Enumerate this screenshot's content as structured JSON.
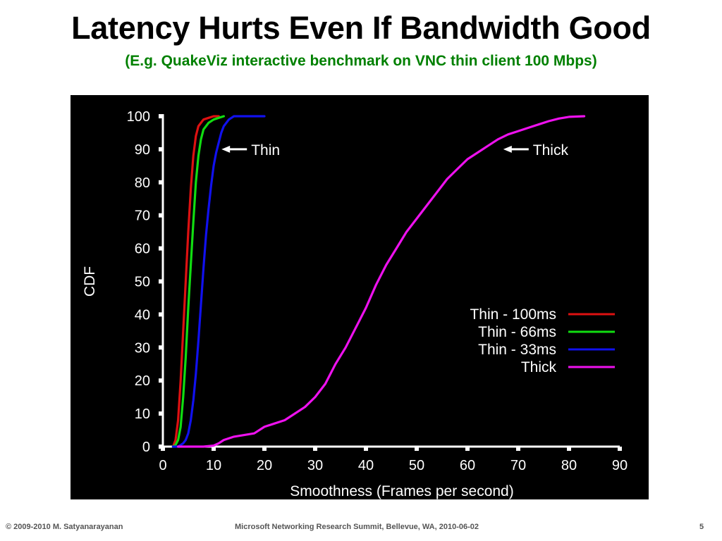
{
  "slide": {
    "title": "Latency Hurts Even If Bandwidth Good",
    "subtitle": "(E.g. QuakeViz interactive benchmark on VNC thin client 100 Mbps)",
    "subtitle_color": "#008000"
  },
  "footer": {
    "left": "© 2009-2010  M. Satyanarayanan",
    "center": "Microsoft Networking Research Summit, Bellevue, WA,  2010-06-02",
    "page_number": "5"
  },
  "chart_data": {
    "type": "line",
    "title": "",
    "xlabel": "Smoothness (Frames per second)",
    "ylabel": "CDF",
    "xlim": [
      0,
      90
    ],
    "ylim": [
      0,
      100
    ],
    "xticks": [
      "0",
      "10",
      "20",
      "30",
      "40",
      "50",
      "60",
      "70",
      "80",
      "90"
    ],
    "yticks": [
      "0",
      "10",
      "20",
      "30",
      "40",
      "50",
      "60",
      "70",
      "80",
      "90",
      "100"
    ],
    "grid": false,
    "legend": "right, inside plot",
    "background": "#000000",
    "annotations": [
      {
        "text": "Thin",
        "arrow_to": [
          11,
          90
        ]
      },
      {
        "text": "Thick",
        "arrow_to": [
          66.5,
          90
        ]
      }
    ],
    "series": [
      {
        "name": "Thin - 100ms",
        "color": "#dd1111",
        "x": [
          2,
          2.5,
          3,
          3.5,
          4,
          4.5,
          5,
          5.5,
          6,
          6.5,
          7,
          7.5,
          8,
          9,
          10,
          11
        ],
        "y": [
          0,
          2,
          8,
          20,
          35,
          50,
          65,
          78,
          88,
          94,
          97,
          98,
          99,
          99.5,
          100,
          100
        ]
      },
      {
        "name": "Thin - 66ms",
        "color": "#11dd11",
        "x": [
          2,
          2.5,
          3,
          3.5,
          4,
          4.5,
          5,
          5.5,
          6,
          6.5,
          7,
          7.5,
          8,
          8.5,
          9,
          10,
          11,
          12
        ],
        "y": [
          0,
          0.5,
          2,
          6,
          15,
          27,
          42,
          55,
          68,
          80,
          88,
          93,
          96,
          97,
          98,
          99,
          99.5,
          100
        ]
      },
      {
        "name": "Thin - 33ms",
        "color": "#1111ee",
        "x": [
          2,
          3,
          3.5,
          4,
          4.5,
          5,
          5.5,
          6,
          6.5,
          7,
          7.5,
          8,
          8.5,
          9,
          9.5,
          10,
          10.5,
          11,
          11.5,
          12,
          13,
          14,
          20
        ],
        "y": [
          0,
          0,
          0.5,
          1,
          2,
          4,
          8,
          14,
          22,
          32,
          43,
          54,
          64,
          72,
          79,
          85,
          89,
          92,
          95,
          97,
          99,
          100,
          100
        ]
      },
      {
        "name": "Thick",
        "color": "#ee11ee",
        "x": [
          3,
          5,
          8,
          10,
          11,
          12,
          14,
          16,
          18,
          20,
          22,
          24,
          26,
          28,
          30,
          32,
          34,
          36,
          38,
          40,
          42,
          44,
          46,
          48,
          50,
          52,
          54,
          56,
          58,
          60,
          62,
          64,
          66,
          68,
          70,
          72,
          74,
          76,
          78,
          80,
          83
        ],
        "y": [
          0,
          0,
          0,
          0.3,
          1,
          2,
          3,
          3.5,
          4,
          6,
          7,
          8,
          10,
          12,
          15,
          19,
          25,
          30,
          36,
          42,
          49,
          55,
          60,
          65,
          69,
          73,
          77,
          81,
          84,
          87,
          89,
          91,
          93,
          94.5,
          95.5,
          96.5,
          97.5,
          98.5,
          99.3,
          99.8,
          100
        ]
      }
    ]
  }
}
